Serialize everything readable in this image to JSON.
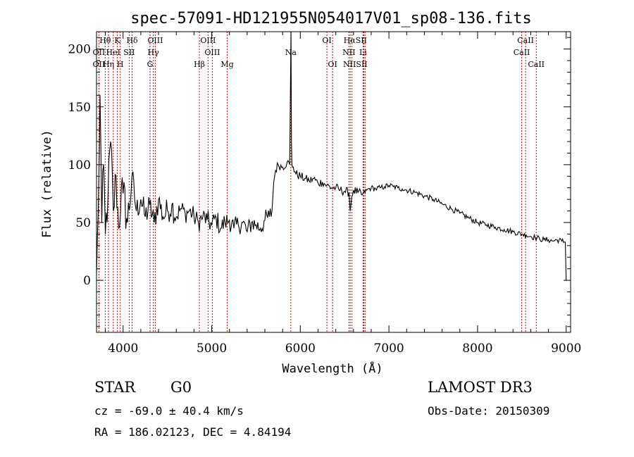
{
  "chart_data": {
    "type": "line",
    "title": "spec-57091-HD121955N054017V01_sp08-136.fits",
    "xlabel": "Wavelength (Å)",
    "ylabel": "Flux (relative)",
    "xlim": [
      3700,
      9050
    ],
    "ylim": [
      -45,
      215
    ],
    "x_ticks": [
      4000,
      5000,
      6000,
      7000,
      8000,
      9000
    ],
    "y_ticks": [
      0,
      50,
      100,
      150,
      200
    ],
    "series": [
      {
        "name": "flux",
        "x": [
          3700,
          3720,
          3740,
          3760,
          3780,
          3800,
          3830,
          3860,
          3890,
          3920,
          3950,
          3980,
          4000,
          4050,
          4100,
          4150,
          4200,
          4250,
          4300,
          4350,
          4400,
          4450,
          4500,
          4550,
          4600,
          4650,
          4700,
          4750,
          4800,
          4850,
          4900,
          4950,
          5000,
          5050,
          5100,
          5150,
          5200,
          5250,
          5300,
          5350,
          5400,
          5450,
          5500,
          5550,
          5600,
          5650,
          5680,
          5700,
          5720,
          5750,
          5800,
          5850,
          5880,
          5895,
          5900,
          5905,
          5920,
          5950,
          6000,
          6050,
          6100,
          6150,
          6200,
          6250,
          6300,
          6350,
          6400,
          6450,
          6500,
          6550,
          6563,
          6580,
          6600,
          6650,
          6700,
          6750,
          6800,
          6850,
          6900,
          6950,
          7000,
          7050,
          7100,
          7150,
          7200,
          7300,
          7400,
          7500,
          7600,
          7700,
          7800,
          7900,
          8000,
          8100,
          8200,
          8300,
          8400,
          8500,
          8550,
          8600,
          8650,
          8700,
          8750,
          8800,
          8850,
          8900,
          8950,
          8990,
          9000
        ],
        "values": [
          5,
          60,
          160,
          50,
          100,
          40,
          75,
          120,
          60,
          90,
          45,
          80,
          75,
          50,
          90,
          60,
          70,
          55,
          65,
          50,
          70,
          55,
          60,
          65,
          55,
          62,
          58,
          60,
          55,
          50,
          55,
          52,
          48,
          54,
          45,
          50,
          52,
          45,
          48,
          50,
          42,
          50,
          48,
          45,
          52,
          55,
          60,
          85,
          95,
          100,
          98,
          102,
          100,
          215,
          120,
          100,
          98,
          92,
          90,
          88,
          86,
          88,
          84,
          85,
          82,
          80,
          80,
          78,
          77,
          76,
          60,
          72,
          78,
          76,
          74,
          78,
          80,
          79,
          80,
          81,
          82,
          81,
          80,
          79,
          78,
          76,
          73,
          70,
          66,
          62,
          58,
          54,
          50,
          48,
          46,
          44,
          42,
          40,
          39,
          38,
          37,
          36,
          35,
          35,
          34,
          35,
          34,
          33,
          0
        ]
      }
    ],
    "line_markers": [
      {
        "label": "Hθ",
        "x": 3798,
        "row": 1
      },
      {
        "label": "K",
        "x": 3934,
        "row": 1
      },
      {
        "label": "Hδ",
        "x": 4102,
        "row": 1
      },
      {
        "label": "OIII",
        "x": 4363,
        "row": 1
      },
      {
        "label": "OIII",
        "x": 4959,
        "row": 1
      },
      {
        "label": "OI",
        "x": 6300,
        "row": 1
      },
      {
        "label": "HαSII",
        "x": 6620,
        "row": 1
      },
      {
        "label": "CaII",
        "x": 8542,
        "row": 1
      },
      {
        "label": "OII",
        "x": 3727,
        "row": 2
      },
      {
        "label": "HeI",
        "x": 3889,
        "row": 2
      },
      {
        "label": "SII",
        "x": 4069,
        "row": 2
      },
      {
        "label": "Hγ",
        "x": 4341,
        "row": 2
      },
      {
        "label": "OIII",
        "x": 5007,
        "row": 2
      },
      {
        "label": "Na",
        "x": 5893,
        "row": 2
      },
      {
        "label": "NII",
        "x": 6548,
        "row": 2
      },
      {
        "label": "Li",
        "x": 6708,
        "row": 2
      },
      {
        "label": "CaII",
        "x": 8498,
        "row": 2
      },
      {
        "label": "OII",
        "x": 3727,
        "row": 3
      },
      {
        "label": "Hη",
        "x": 3835,
        "row": 3
      },
      {
        "label": "H",
        "x": 3968,
        "row": 3
      },
      {
        "label": "G",
        "x": 4304,
        "row": 3
      },
      {
        "label": "Hβ",
        "x": 4861,
        "row": 3
      },
      {
        "label": "Mg",
        "x": 5175,
        "row": 3
      },
      {
        "label": "OI",
        "x": 6364,
        "row": 3
      },
      {
        "label": "NIISII",
        "x": 6620,
        "row": 3
      },
      {
        "label": "CaII",
        "x": 8662,
        "row": 3
      }
    ],
    "marker_lines_x": [
      3727,
      3798,
      3835,
      3889,
      3934,
      3968,
      4069,
      4102,
      4304,
      4341,
      4363,
      4861,
      4959,
      5007,
      5175,
      5893,
      6300,
      6364,
      6548,
      6563,
      6583,
      6708,
      6716,
      6731,
      8498,
      8542,
      8662
    ]
  },
  "info": {
    "object_class": "STAR",
    "subclass": "G0",
    "survey": "LAMOST DR3",
    "redshift": "cz = -69.0 ± 40.4 km/s",
    "obs_date": "Obs-Date: 20150309",
    "coords": "RA = 186.02123, DEC =   4.84194"
  },
  "colors": {
    "line": "#000000",
    "marker": "#cc0000",
    "axes": "#000000"
  }
}
